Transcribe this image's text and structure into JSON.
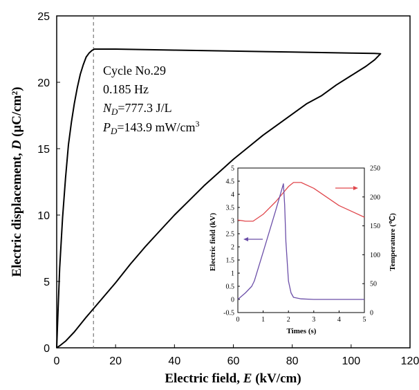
{
  "chart_data": [
    {
      "type": "line",
      "xlabel": {
        "prefix": "Electric field, ",
        "var": "E",
        "suffix": " (kV/cm)"
      },
      "ylabel": {
        "prefix": "Electric displacement, ",
        "var": "D",
        "suffix": " (μC/cm²)"
      },
      "xlim": [
        0,
        120
      ],
      "ylim": [
        0,
        25
      ],
      "x_ticks": [
        0,
        20,
        40,
        60,
        80,
        100,
        120
      ],
      "y_ticks": [
        0,
        5,
        10,
        15,
        20,
        25
      ],
      "grid": false,
      "reference_line": {
        "x": 12.5,
        "style": "dashed"
      },
      "annotations": {
        "cycle": "Cycle No.29",
        "freq": "0.185 Hz",
        "nd": {
          "sym": "N",
          "sub": "D",
          "rest": "=777.3 J/L"
        },
        "pd": {
          "sym": "P",
          "sub": "D",
          "rest": "=143.9 mW/cm",
          "sup": "3"
        }
      },
      "series": [
        {
          "color": "#000000",
          "x": [
            0,
            0.5,
            1,
            2,
            3,
            4,
            5,
            6,
            7,
            8,
            9,
            10,
            11,
            12,
            12.8,
            20,
            40,
            60,
            80,
            100,
            108,
            110,
            108,
            105,
            100,
            95,
            90,
            85,
            80,
            75,
            70,
            65,
            60,
            55,
            50,
            45,
            40,
            35,
            30,
            25,
            20,
            15,
            10,
            6,
            3,
            1,
            0
          ],
          "y": [
            0,
            3.0,
            6.0,
            9.8,
            12.8,
            15.3,
            17.0,
            18.4,
            19.6,
            20.6,
            21.3,
            21.9,
            22.2,
            22.4,
            22.5,
            22.5,
            22.42,
            22.35,
            22.28,
            22.2,
            22.17,
            22.15,
            21.7,
            21.2,
            20.5,
            19.8,
            19.0,
            18.4,
            17.6,
            16.8,
            16.0,
            15.1,
            14.2,
            13.2,
            12.2,
            11.1,
            10.0,
            8.8,
            7.6,
            6.3,
            4.9,
            3.6,
            2.3,
            1.2,
            0.5,
            0.15,
            0
          ]
        }
      ]
    },
    {
      "type": "line",
      "inset": true,
      "xlabel": "Times (s)",
      "ylabel": "Electric field (kV)",
      "ylabel_right": "Temperature (℃)",
      "xlim": [
        0,
        5
      ],
      "ylim": [
        -0.5,
        5
      ],
      "ylim_right": [
        0,
        250
      ],
      "x_ticks": [
        0,
        1,
        2,
        3,
        4,
        5
      ],
      "y_ticks": [
        -0.5,
        0,
        0.5,
        1,
        1.5,
        2,
        2.5,
        3,
        3.5,
        4,
        4.5,
        5
      ],
      "y_ticks_right": [
        0,
        50,
        100,
        150,
        200,
        250
      ],
      "grid": false,
      "series": [
        {
          "color": "#e0474c",
          "axis": "right",
          "x": [
            0,
            0.3,
            0.6,
            1.0,
            1.5,
            2.0,
            2.2,
            2.5,
            3.0,
            3.5,
            4.0,
            4.5,
            5.0
          ],
          "y": [
            160,
            158,
            158,
            170,
            192,
            218,
            225,
            225,
            215,
            200,
            185,
            175,
            165
          ]
        },
        {
          "color": "#6b4ea8",
          "axis": "left",
          "x": [
            0,
            0.3,
            0.55,
            0.65,
            1.0,
            1.5,
            1.8,
            1.85,
            1.9,
            2.0,
            2.1,
            2.2,
            2.5,
            3.0,
            4.0,
            5.0
          ],
          "y": [
            0,
            0.25,
            0.5,
            0.7,
            1.8,
            3.4,
            4.4,
            3.6,
            2.2,
            0.7,
            0.25,
            0.08,
            0.02,
            0.0,
            0.0,
            0.0
          ]
        }
      ]
    }
  ],
  "colors": {
    "arrow_right": "#e0474c",
    "arrow_left": "#6b4ea8"
  }
}
